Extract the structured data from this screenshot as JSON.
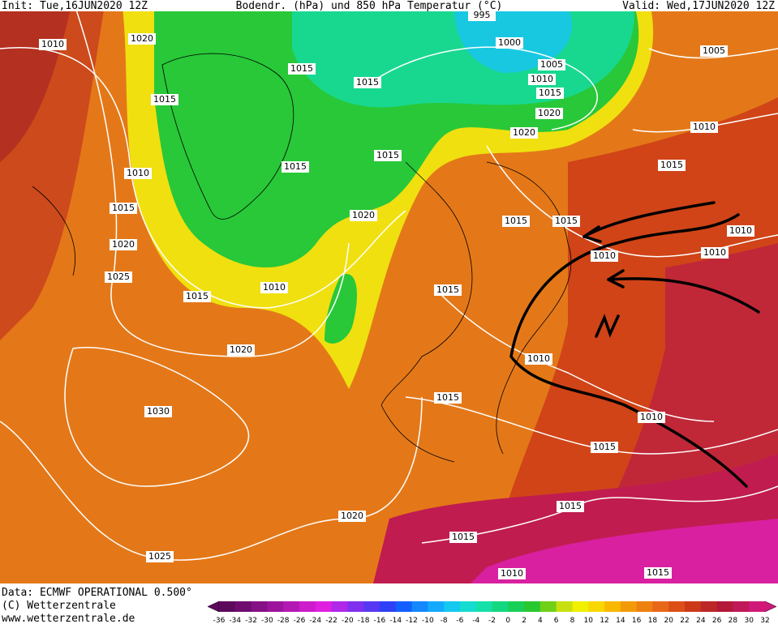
{
  "header": {
    "init": "Init: Tue,16JUN2020 12Z",
    "title": "Bodendr. (hPa) und 850 hPa Temperatur (°C)",
    "valid": "Valid: Wed,17JUN2020 12Z"
  },
  "footer": {
    "data": "Data: ECMWF OPERATIONAL 0.500°",
    "copyright": "(C) Wetterzentrale",
    "url": "www.wetterzentrale.de"
  },
  "isobar_labels": [
    "995",
    "1010",
    "1020",
    "1015",
    "1015",
    "1000",
    "1005",
    "1010",
    "1015",
    "1020",
    "1020",
    "1005",
    "1015",
    "1010",
    "1015",
    "1015",
    "1010",
    "1015",
    "1015",
    "1020",
    "1015",
    "1015",
    "1010",
    "1020",
    "1010",
    "1010",
    "1025",
    "1010",
    "1015",
    "1015",
    "1020",
    "1010",
    "1015",
    "1030",
    "1010",
    "1015",
    "1020",
    "1015",
    "1015",
    "1025",
    "1010",
    "1015"
  ],
  "colorbar": {
    "labels": [
      -36,
      -34,
      -32,
      -30,
      -28,
      -26,
      -24,
      -22,
      -20,
      -18,
      -16,
      -14,
      -12,
      -10,
      -8,
      -6,
      -4,
      -2,
      0,
      2,
      4,
      6,
      8,
      10,
      12,
      14,
      16,
      18,
      20,
      22,
      24,
      26,
      28,
      30,
      32
    ],
    "colors": [
      "#5c0a5c",
      "#700c70",
      "#861086",
      "#9c149c",
      "#b418b4",
      "#cc1ccc",
      "#e020e0",
      "#b028e8",
      "#8030ee",
      "#5838f2",
      "#3040f6",
      "#1460ff",
      "#1488ff",
      "#14aaff",
      "#14c8f0",
      "#14dcd0",
      "#14e0a8",
      "#14d880",
      "#18d058",
      "#28c830",
      "#70d018",
      "#c8e010",
      "#f0f000",
      "#f8d800",
      "#f8b800",
      "#f49a08",
      "#ee8010",
      "#e86818",
      "#dc5018",
      "#cc3818",
      "#bc2828",
      "#b41838",
      "#c01858",
      "#d01878"
    ]
  }
}
